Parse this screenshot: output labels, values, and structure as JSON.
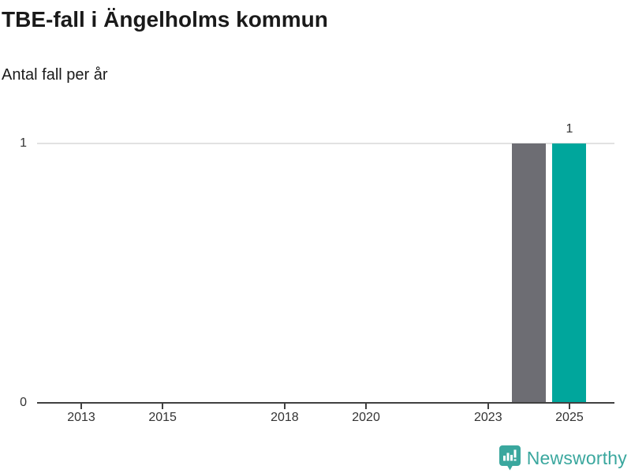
{
  "header": {
    "title": "TBE-fall i Ängelholms kommun",
    "subtitle": "Antal fall per år"
  },
  "chart_data": {
    "type": "bar",
    "title": "TBE-fall i Ängelholms kommun",
    "subtitle": "Antal fall per år",
    "xlabel": "",
    "ylabel": "Antal fall per år",
    "x_axis": {
      "range": [
        2012,
        2026
      ],
      "ticks": [
        2013,
        2015,
        2018,
        2020,
        2023,
        2025
      ]
    },
    "y_axis": {
      "range": [
        0,
        1
      ],
      "ticks": [
        0,
        1
      ]
    },
    "grid": "horizontal gridline at y=1 only",
    "legend": "none",
    "series": [
      {
        "name": "TBE-fall",
        "points": [
          {
            "year": 2012,
            "value": 0
          },
          {
            "year": 2013,
            "value": 0
          },
          {
            "year": 2014,
            "value": 0
          },
          {
            "year": 2015,
            "value": 0
          },
          {
            "year": 2016,
            "value": 0
          },
          {
            "year": 2017,
            "value": 0
          },
          {
            "year": 2018,
            "value": 0
          },
          {
            "year": 2019,
            "value": 0
          },
          {
            "year": 2020,
            "value": 0
          },
          {
            "year": 2021,
            "value": 0
          },
          {
            "year": 2022,
            "value": 0
          },
          {
            "year": 2023,
            "value": 0
          },
          {
            "year": 2024,
            "value": 1,
            "color": "#6d6d73"
          },
          {
            "year": 2025,
            "value": 1,
            "color": "#00a69c",
            "data_label": "1"
          }
        ]
      }
    ],
    "colors": {
      "bar_default": "#6d6d73",
      "bar_highlight": "#00a69c",
      "gridline": "#e2e2e2",
      "axis": "#404040",
      "tick_text": "#333333"
    }
  },
  "footer": {
    "brand": "Newsworthy",
    "brand_color": "#3aa79e",
    "icon": "newsworthy-bar-chart-bubble-icon"
  }
}
